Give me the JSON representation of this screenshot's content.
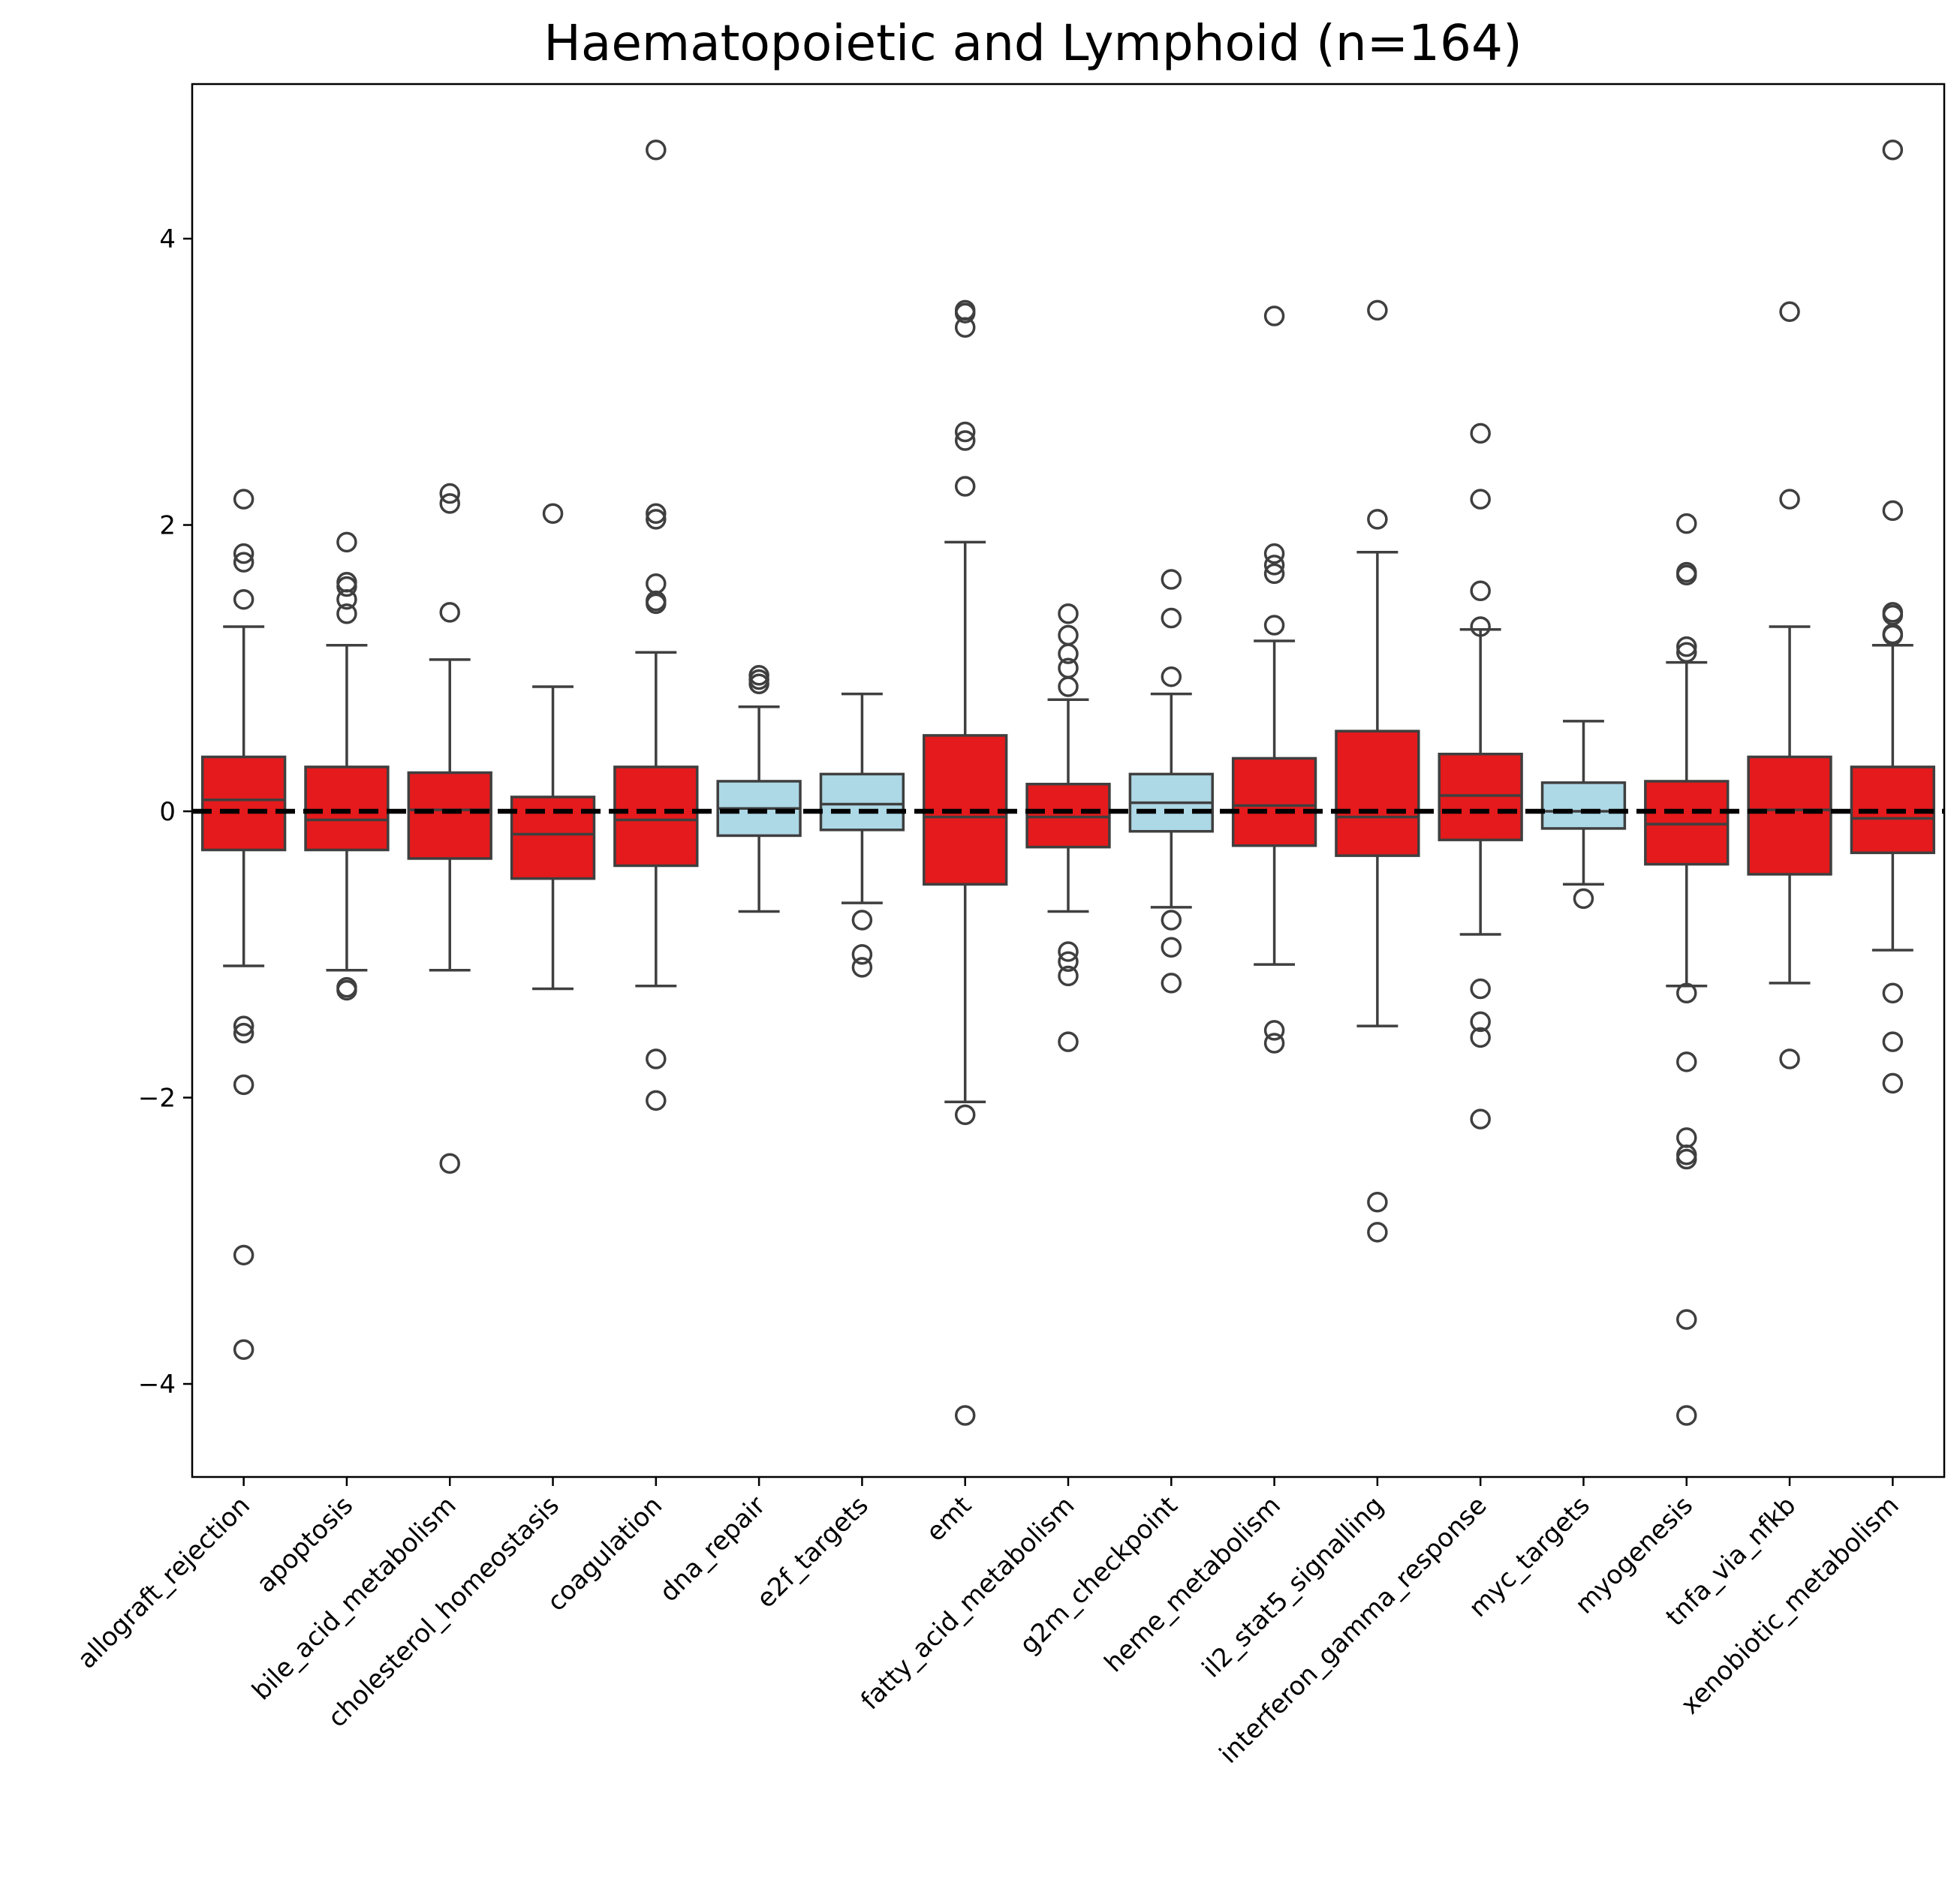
{
  "chart_data": {
    "type": "box",
    "title": "Haematopoietic and Lymphoid (n=164)",
    "xlabel": "",
    "ylabel": "",
    "ylim": [
      -4.65,
      5.08
    ],
    "yticks": [
      -4,
      -2,
      0,
      2,
      4
    ],
    "ytick_labels": [
      "−4",
      "−2",
      "0",
      "2",
      "4"
    ],
    "reference_line": {
      "y": 0,
      "style": "dashed",
      "color": "#000000"
    },
    "grid": false,
    "legend": "none",
    "colors": {
      "red": "#e41a1c",
      "blue": "#add8e6",
      "edge": "#3f3f3f"
    },
    "categories": [
      "allograft_rejection",
      "apoptosis",
      "bile_acid_metabolism",
      "cholesterol_homeostasis",
      "coagulation",
      "dna_repair",
      "e2f_targets",
      "emt",
      "fatty_acid_metabolism",
      "g2m_checkpoint",
      "heme_metabolism",
      "il2_stat5_signalling",
      "interferon_gamma_response",
      "myc_targets",
      "myogenesis",
      "tnfa_via_nfkb",
      "xenobiotic_metabolism"
    ],
    "boxes": [
      {
        "name": "allograft_rejection",
        "color": "red",
        "whislo": -1.08,
        "q1": -0.27,
        "med": 0.08,
        "q3": 0.38,
        "whishi": 1.29,
        "fliers": [
          2.18,
          1.8,
          1.74,
          1.48,
          -1.5,
          -1.55,
          -1.91,
          -3.1,
          -3.76
        ]
      },
      {
        "name": "apoptosis",
        "color": "red",
        "whislo": -1.11,
        "q1": -0.27,
        "med": -0.06,
        "q3": 0.31,
        "whishi": 1.16,
        "fliers": [
          1.88,
          1.6,
          1.57,
          1.48,
          1.38,
          -1.23,
          -1.25
        ]
      },
      {
        "name": "bile_acid_metabolism",
        "color": "red",
        "whislo": -1.11,
        "q1": -0.33,
        "med": 0.01,
        "q3": 0.27,
        "whishi": 1.06,
        "fliers": [
          2.22,
          2.15,
          1.39,
          -2.46
        ]
      },
      {
        "name": "cholesterol_homeostasis",
        "color": "red",
        "whislo": -1.24,
        "q1": -0.47,
        "med": -0.16,
        "q3": 0.1,
        "whishi": 0.87,
        "fliers": [
          2.08
        ]
      },
      {
        "name": "coagulation",
        "color": "red",
        "whislo": -1.22,
        "q1": -0.38,
        "med": -0.06,
        "q3": 0.31,
        "whishi": 1.11,
        "fliers": [
          2.08,
          2.04,
          1.59,
          1.47,
          1.45,
          -1.73,
          -2.02
        ]
      },
      {
        "name": "dna_repair",
        "color": "blue",
        "whislo": -0.7,
        "q1": -0.17,
        "med": 0.02,
        "q3": 0.21,
        "whishi": 0.73,
        "fliers": [
          0.95,
          0.92,
          0.89
        ]
      },
      {
        "name": "e2f_targets",
        "color": "blue",
        "whislo": -0.64,
        "q1": -0.13,
        "med": 0.05,
        "q3": 0.26,
        "whishi": 0.82,
        "fliers": [
          -0.76,
          -1.0,
          -1.09
        ]
      },
      {
        "name": "emt",
        "color": "red",
        "whislo": -2.03,
        "q1": -0.51,
        "med": -0.04,
        "q3": 0.53,
        "whishi": 1.88,
        "fliers": [
          3.5,
          3.48,
          3.38,
          2.65,
          2.59,
          2.27,
          -2.12,
          -4.22
        ]
      },
      {
        "name": "fatty_acid_metabolism",
        "color": "red",
        "whislo": -0.7,
        "q1": -0.25,
        "med": -0.04,
        "q3": 0.19,
        "whishi": 0.78,
        "fliers": [
          1.38,
          1.23,
          1.1,
          1.0,
          0.87,
          -0.98,
          -1.05,
          -1.15,
          -1.61
        ]
      },
      {
        "name": "g2m_checkpoint",
        "color": "blue",
        "whislo": -0.67,
        "q1": -0.14,
        "med": 0.06,
        "q3": 0.26,
        "whishi": 0.82,
        "fliers": [
          1.62,
          1.35,
          0.94,
          -0.76,
          -0.95,
          -1.2
        ]
      },
      {
        "name": "heme_metabolism",
        "color": "red",
        "whislo": -1.07,
        "q1": -0.24,
        "med": 0.04,
        "q3": 0.37,
        "whishi": 1.19,
        "fliers": [
          3.46,
          1.8,
          1.72,
          1.66,
          1.3,
          -1.53,
          -1.62
        ]
      },
      {
        "name": "il2_stat5_signalling",
        "color": "red",
        "whislo": -1.5,
        "q1": -0.31,
        "med": -0.04,
        "q3": 0.56,
        "whishi": 1.81,
        "fliers": [
          3.5,
          2.04,
          -2.73,
          -2.94
        ]
      },
      {
        "name": "interferon_gamma_response",
        "color": "red",
        "whislo": -0.86,
        "q1": -0.2,
        "med": 0.11,
        "q3": 0.4,
        "whishi": 1.27,
        "fliers": [
          2.64,
          2.18,
          1.54,
          1.29,
          -1.24,
          -1.47,
          -1.58,
          -2.15
        ]
      },
      {
        "name": "myc_targets",
        "color": "blue",
        "whislo": -0.51,
        "q1": -0.12,
        "med": 0.0,
        "q3": 0.2,
        "whishi": 0.63,
        "fliers": [
          -0.61
        ]
      },
      {
        "name": "myogenesis",
        "color": "red",
        "whislo": -1.22,
        "q1": -0.37,
        "med": -0.09,
        "q3": 0.21,
        "whishi": 1.04,
        "fliers": [
          2.01,
          1.67,
          1.65,
          1.15,
          1.11,
          -1.27,
          -1.75,
          -2.28,
          -2.4,
          -2.43,
          -3.55,
          -4.22
        ]
      },
      {
        "name": "tnfa_via_nfkb",
        "color": "red",
        "whislo": -1.2,
        "q1": -0.44,
        "med": 0.01,
        "q3": 0.38,
        "whishi": 1.29,
        "fliers": [
          3.49,
          2.18,
          -1.73
        ]
      },
      {
        "name": "xenobiotic_metabolism",
        "color": "red",
        "whislo": -0.97,
        "q1": -0.29,
        "med": -0.05,
        "q3": 0.31,
        "whishi": 1.16,
        "fliers": [
          4.62,
          2.1,
          1.39,
          1.37,
          1.24,
          1.23,
          -1.27,
          -1.61,
          -1.9
        ]
      }
    ],
    "extra_fliers": [
      {
        "name": "coagulation",
        "fliers": [
          4.62
        ]
      }
    ]
  }
}
